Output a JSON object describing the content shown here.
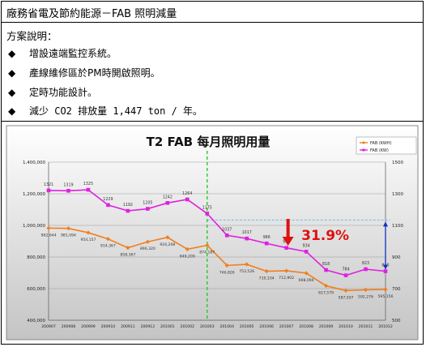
{
  "table": {
    "title": "廠務省電及節約能源－FAB 照明減量",
    "desc_label": "方案說明：",
    "bullets": [
      "增設遠端監控系統。",
      "產線維修區於PM時開啟照明。",
      "定時功能設計。",
      "減少 CO2 排放量 1,447 ton / 年。"
    ]
  },
  "chart_data": {
    "type": "line",
    "title": "T2 FAB 每月照明用量",
    "categories": [
      "200907",
      "200908",
      "200909",
      "200910",
      "200911",
      "200912",
      "201001",
      "201002",
      "201003",
      "201004",
      "201005",
      "201006",
      "201007",
      "201008",
      "201009",
      "201010",
      "201011",
      "201012"
    ],
    "series": [
      {
        "name": "FAB (KWH)",
        "axis": "left",
        "color": "#f07f1e",
        "values": [
          982644,
          981094,
          954157,
          914367,
          858367,
          896320,
          924208,
          849209,
          874187,
          746826,
          753526,
          710104,
          712902,
          698094,
          617579,
          587597,
          592276,
          595156
        ],
        "labels": [
          "982,644",
          "981,094",
          "954,157",
          "914,367",
          "858,367",
          "896,320",
          "924,208",
          "849,209",
          "874,187",
          "746,826",
          "753,526",
          "710,104",
          "712,902",
          "698,094",
          "617,579",
          "587,597",
          "592,276",
          "595,156"
        ]
      },
      {
        "name": "FAB (KW)",
        "axis": "right",
        "color": "#e020e0",
        "values": [
          1321,
          1319,
          1325,
          1229,
          1192,
          1205,
          1242,
          1264,
          1175,
          1037,
          1017,
          986,
          958,
          934,
          818,
          784,
          823,
          810
        ],
        "labels": [
          "1321",
          "1319",
          "1325",
          "1229",
          "1192",
          "1205",
          "1242",
          "1264",
          "1175",
          "1037",
          "1017",
          "986",
          "958",
          "934",
          "818",
          "784",
          "823",
          "810"
        ]
      }
    ],
    "left_axis": {
      "ylim": [
        400000,
        1400000
      ],
      "ticks": [
        "400,000",
        "600,000",
        "800,000",
        "1,000,000",
        "1,200,000",
        "1,400,000"
      ]
    },
    "right_axis": {
      "ylim": [
        500,
        1500
      ],
      "ticks": [
        "500",
        "700",
        "900",
        "1100",
        "1300",
        "1500"
      ]
    },
    "annotation": "31.9%",
    "legend": [
      "FAB (KWH)",
      "FAB (KW)"
    ],
    "legend_position": "top-right",
    "grid": true,
    "colors": {
      "annotation_red": "#e01010",
      "divider_green": "#22cc22",
      "arrow_blue": "#1030c0",
      "plot_bg_top": "#ffffff",
      "plot_bg_bottom": "#c8c8c8"
    }
  }
}
